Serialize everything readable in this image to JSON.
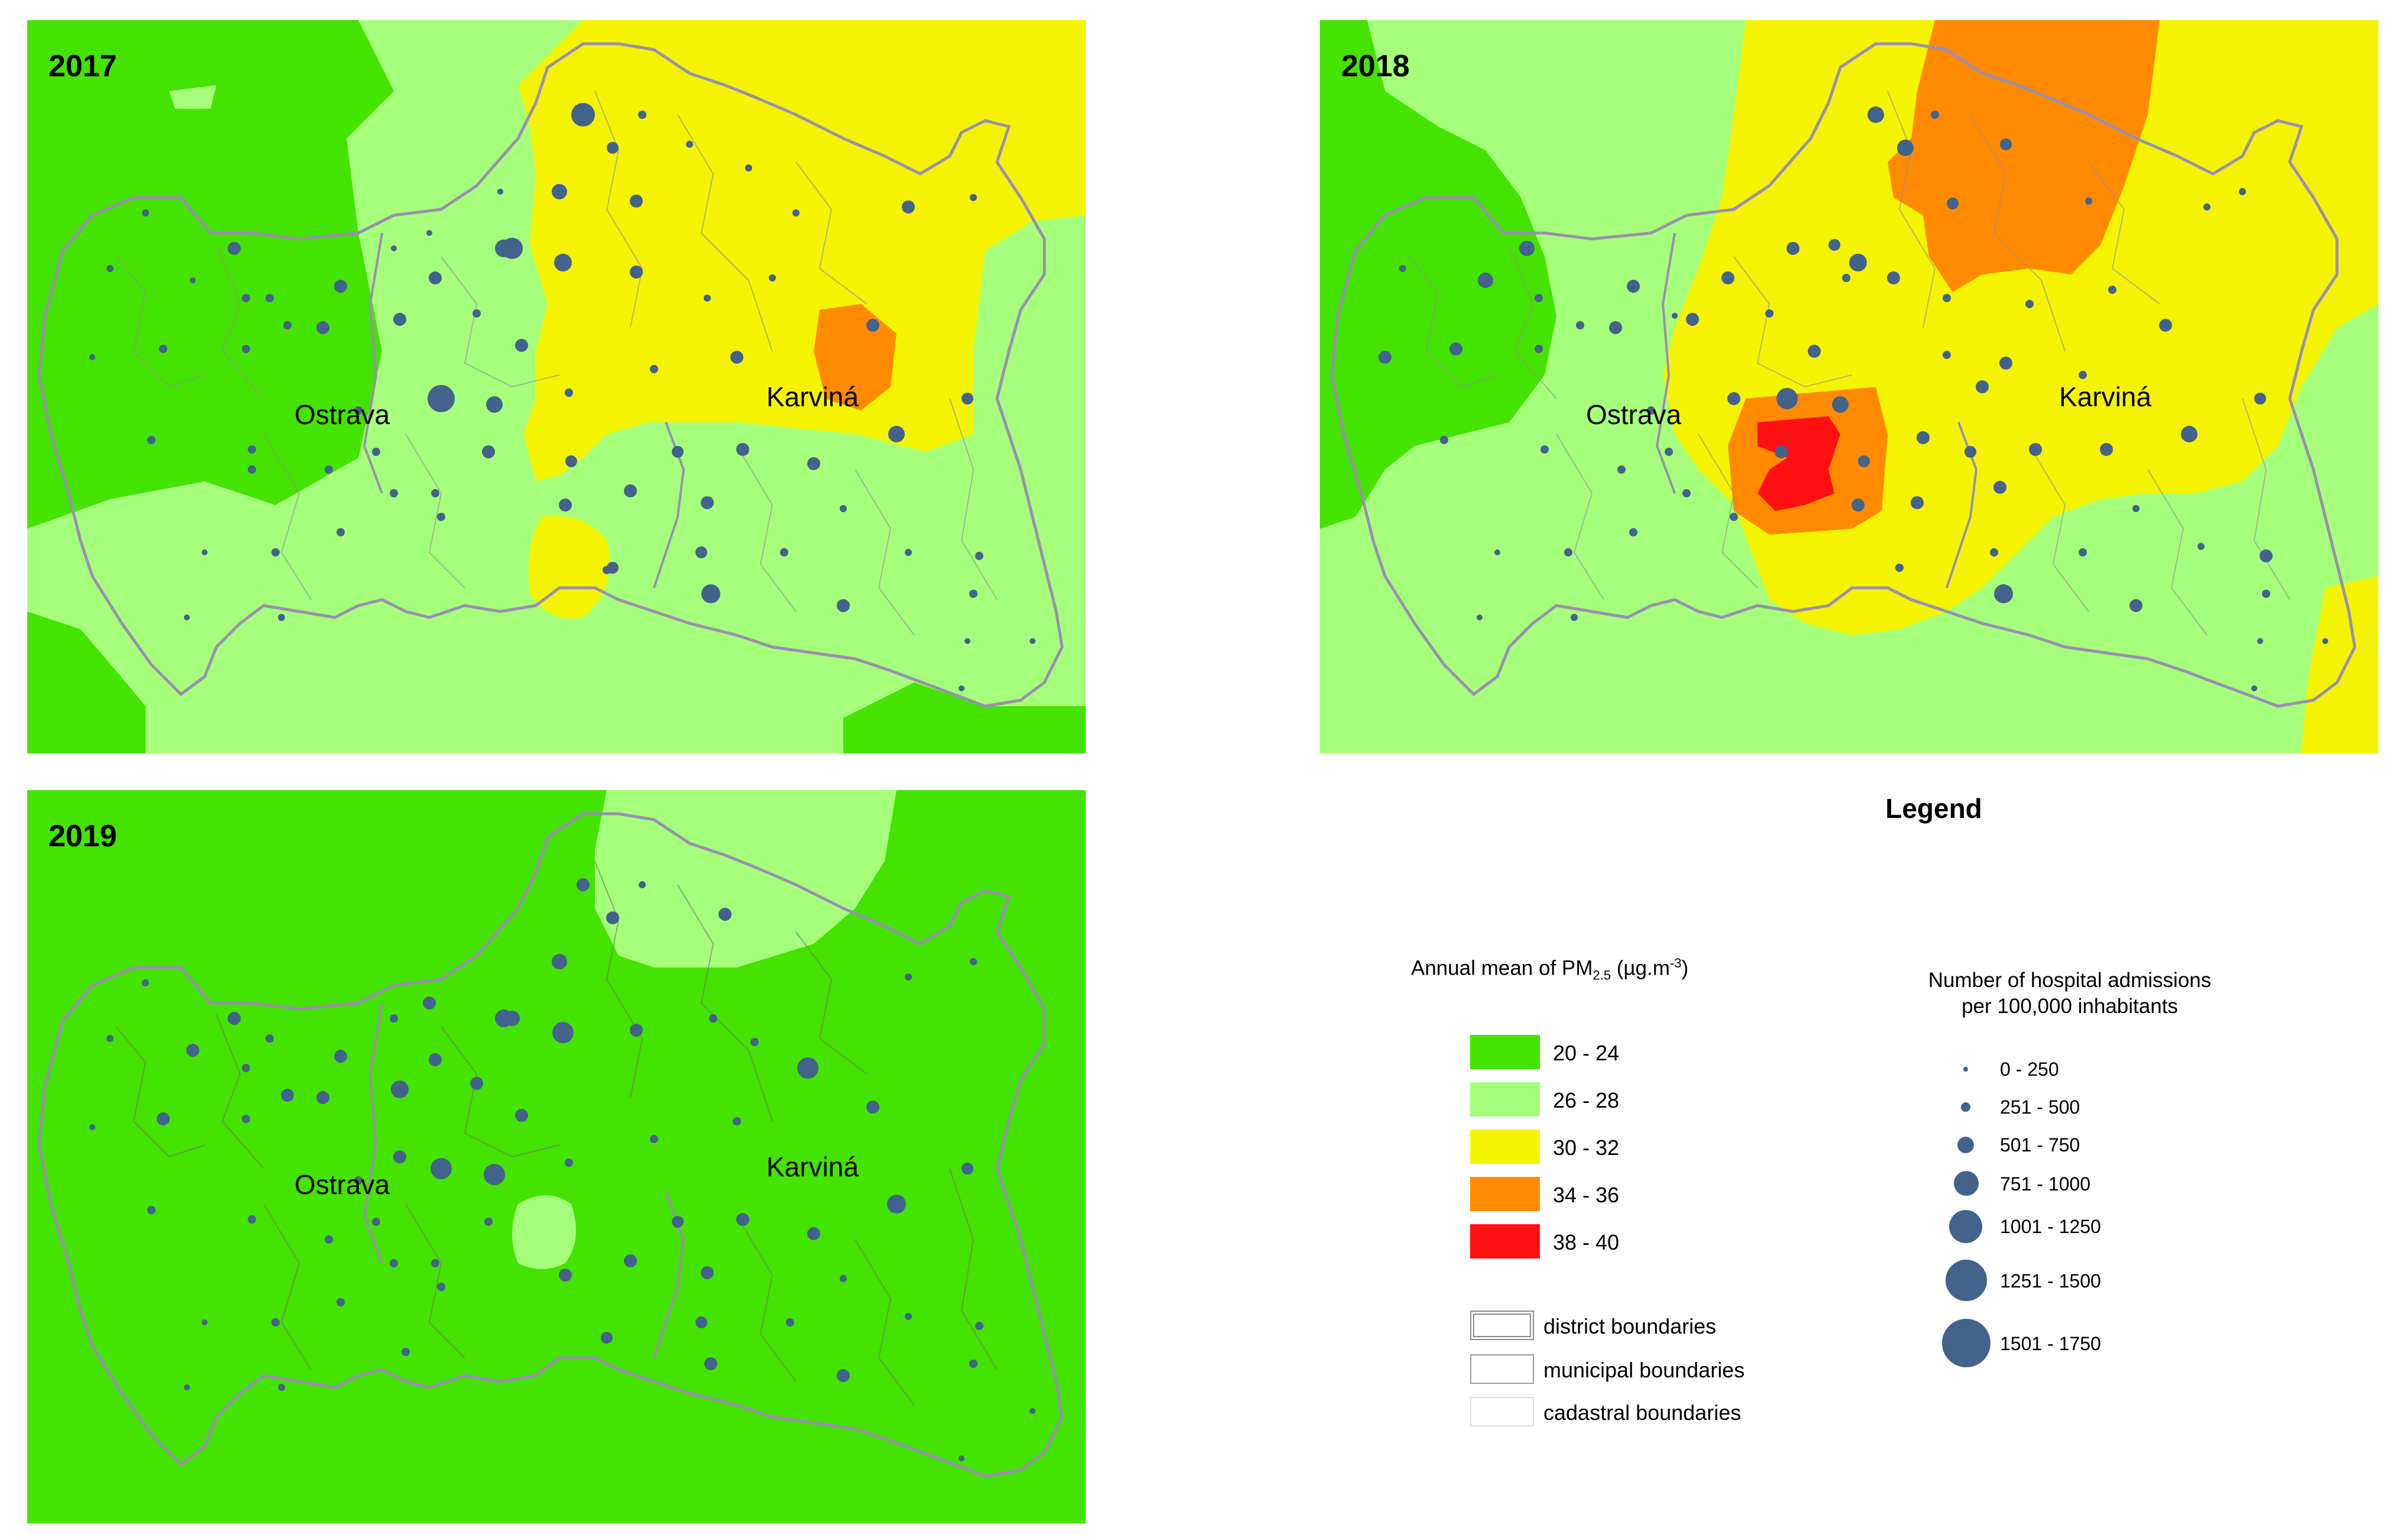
{
  "panels": [
    {
      "year": "2017",
      "cities": [
        "Ostrava",
        "Karviná"
      ]
    },
    {
      "year": "2018",
      "cities": [
        "Ostrava",
        "Karviná"
      ]
    },
    {
      "year": "2019",
      "cities": [
        "Ostrava",
        "Karviná"
      ]
    }
  ],
  "legend": {
    "title": "Legend",
    "pm_title": {
      "main": "Annual mean of PM",
      "sub": "2.5",
      "unit_pre": " (µg.m",
      "unit_sup": "-3",
      "unit_post": ")"
    },
    "pm_classes": [
      {
        "label": "20 - 24",
        "color": "#44e300"
      },
      {
        "label": "26 - 28",
        "color": "#a6ff7a"
      },
      {
        "label": "30 - 32",
        "color": "#f4f400"
      },
      {
        "label": "34 - 36",
        "color": "#ff8a00"
      },
      {
        "label": "38 - 40",
        "color": "#ff1010"
      }
    ],
    "boundaries": [
      {
        "label": "district boundaries",
        "icon": "district-boundary-swatch"
      },
      {
        "label": "municipal boundaries",
        "icon": "municipal-boundary-swatch"
      },
      {
        "label": "cadastral boundaries",
        "icon": "cadastral-boundary-swatch"
      }
    ],
    "admissions_title_line1": "Number of hospital admissions",
    "admissions_title_line2": "per 100,000 inhabitants",
    "admission_classes": [
      "0 - 250",
      "251 - 500",
      "501 - 750",
      "751 - 1000",
      "1001 - 1250",
      "1251 - 1500",
      "1501 - 1750"
    ],
    "dot_color": "#43628c",
    "boundary_color": "#9a8fb0"
  }
}
